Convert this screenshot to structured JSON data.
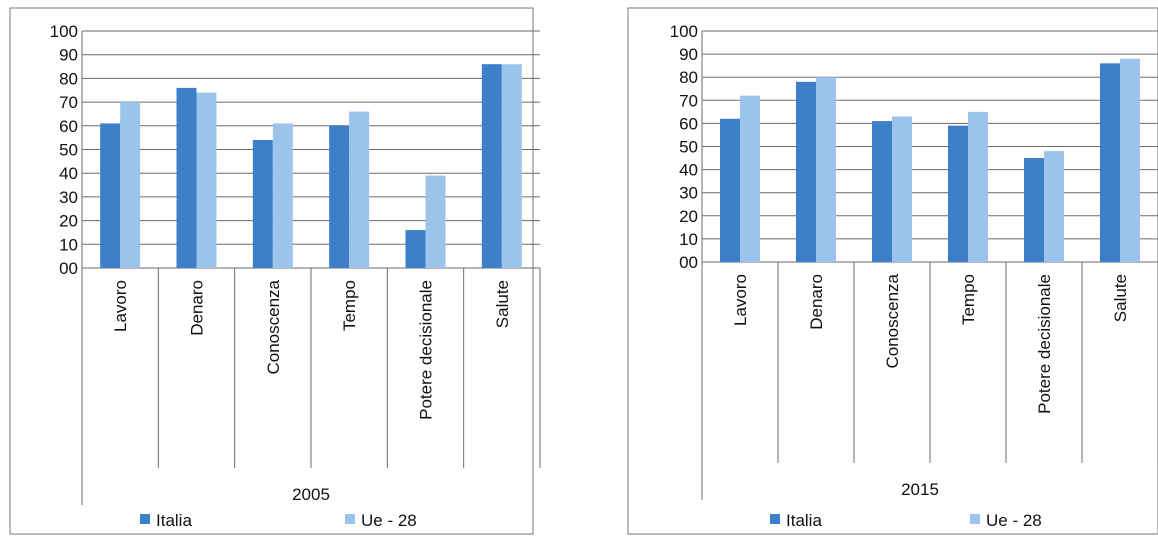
{
  "chart_data": [
    {
      "type": "bar",
      "group_label": "2005",
      "categories": [
        "Lavoro",
        "Denaro",
        "Conoscenza",
        "Tempo",
        "Potere decisionale",
        "Salute"
      ],
      "series": [
        {
          "name": "Italia",
          "color": "#3d7fc8",
          "values": [
            61,
            76,
            54,
            60,
            16,
            86
          ]
        },
        {
          "name": "Ue - 28",
          "color": "#9cc3ec",
          "values": [
            70,
            74,
            61,
            66,
            39,
            86
          ]
        }
      ],
      "ylim": [
        0,
        100
      ],
      "y_ticks": [
        "00",
        "10",
        "20",
        "30",
        "40",
        "50",
        "60",
        "70",
        "80",
        "90",
        "100"
      ],
      "grid": true,
      "legend": "bottom"
    },
    {
      "type": "bar",
      "group_label": "2015",
      "categories": [
        "Lavoro",
        "Denaro",
        "Conoscenza",
        "Tempo",
        "Potere decisionale",
        "Salute"
      ],
      "series": [
        {
          "name": "Italia",
          "color": "#3d7fc8",
          "values": [
            62,
            78,
            61,
            59,
            45,
            86
          ]
        },
        {
          "name": "Ue - 28",
          "color": "#9cc3ec",
          "values": [
            72,
            80,
            63,
            65,
            48,
            88
          ]
        }
      ],
      "ylim": [
        0,
        100
      ],
      "y_ticks": [
        "00",
        "10",
        "20",
        "30",
        "40",
        "50",
        "60",
        "70",
        "80",
        "90",
        "100"
      ],
      "grid": true,
      "legend": "bottom"
    }
  ]
}
